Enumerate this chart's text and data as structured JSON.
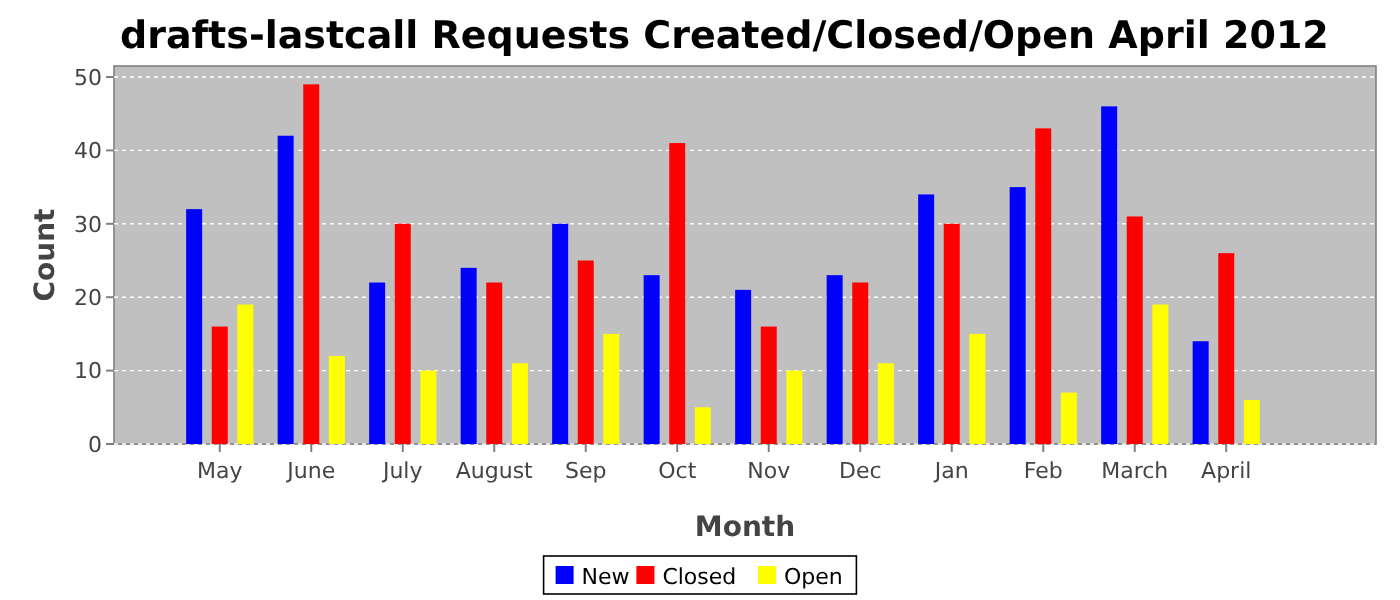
{
  "chart_data": {
    "type": "bar",
    "title": "drafts-lastcall Requests Created/Closed/Open April 2012",
    "xlabel": "Month",
    "ylabel": "Count",
    "categories": [
      "May",
      "June",
      "July",
      "August",
      "Sep",
      "Oct",
      "Nov",
      "Dec",
      "Jan",
      "Feb",
      "March",
      "April"
    ],
    "series": [
      {
        "name": "New",
        "color": "#0000ff",
        "values": [
          32,
          42,
          22,
          24,
          30,
          23,
          21,
          23,
          34,
          35,
          46,
          14
        ]
      },
      {
        "name": "Closed",
        "color": "#ff0000",
        "values": [
          16,
          49,
          30,
          22,
          25,
          41,
          16,
          22,
          30,
          43,
          31,
          26
        ]
      },
      {
        "name": "Open",
        "color": "#ffff00",
        "values": [
          19,
          12,
          10,
          11,
          15,
          5,
          10,
          11,
          15,
          7,
          19,
          6
        ]
      }
    ],
    "ylim": [
      0,
      51.5
    ],
    "yticks": [
      0,
      10,
      20,
      30,
      40,
      50
    ],
    "grid": "y",
    "legend": "bottom"
  }
}
